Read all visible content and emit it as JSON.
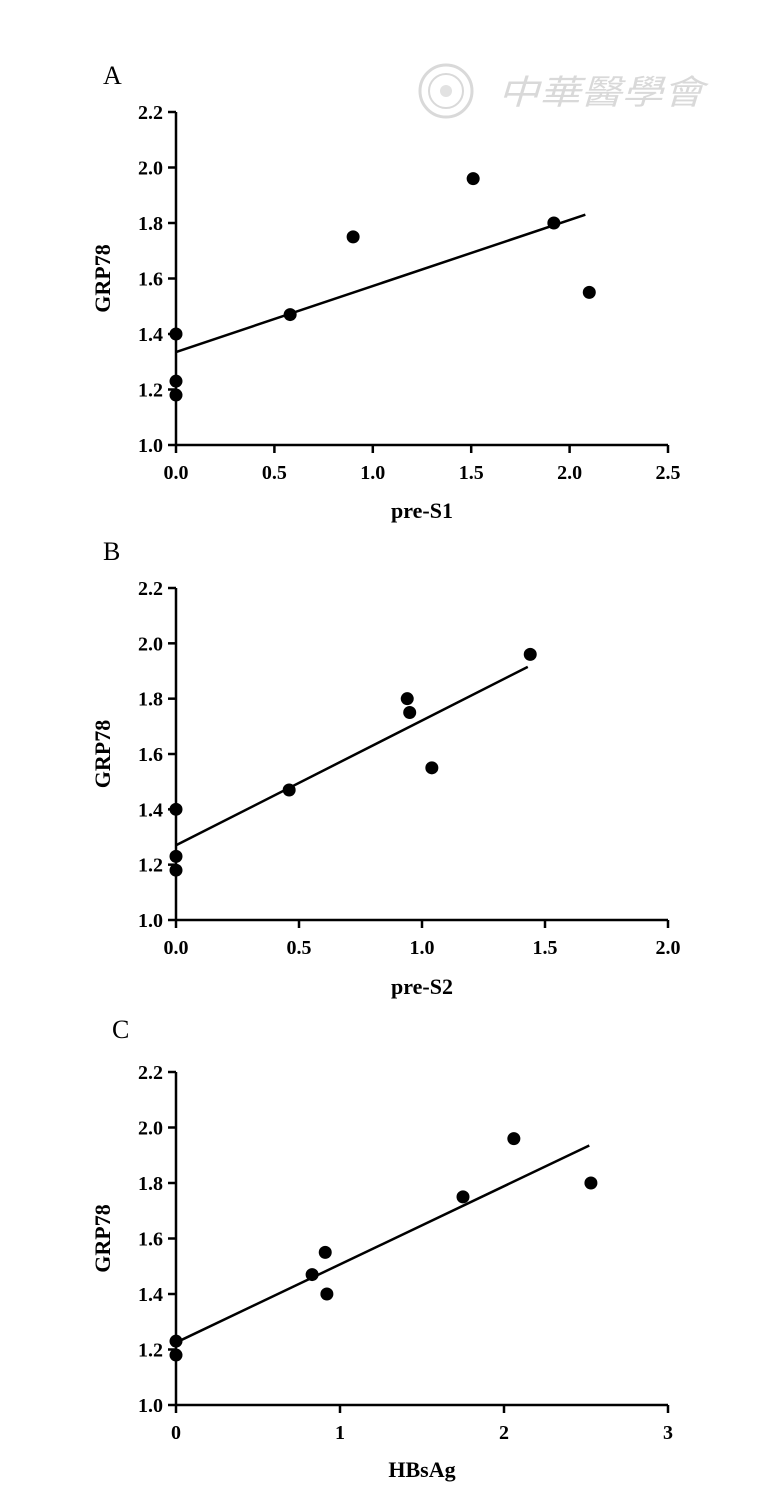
{
  "watermark": {
    "text": "中華醫學會",
    "color": "#d9d9d9"
  },
  "chart_data": [
    {
      "type": "scatter",
      "panel": "A",
      "xlabel": "pre-S1",
      "ylabel": "GRP78",
      "xlim": [
        0,
        2.5
      ],
      "ylim": [
        1.0,
        2.2
      ],
      "xticks": [
        "0.0",
        "0.5",
        "1.0",
        "1.5",
        "2.0",
        "2.5"
      ],
      "yticks": [
        "1.0",
        "1.2",
        "1.4",
        "1.6",
        "1.8",
        "2.0",
        "2.2"
      ],
      "points": [
        {
          "x": 0,
          "y": 1.4
        },
        {
          "x": 0,
          "y": 1.23
        },
        {
          "x": 0,
          "y": 1.18
        },
        {
          "x": 0.58,
          "y": 1.47
        },
        {
          "x": 0.9,
          "y": 1.75
        },
        {
          "x": 1.51,
          "y": 1.96
        },
        {
          "x": 1.92,
          "y": 1.8
        },
        {
          "x": 2.1,
          "y": 1.55
        }
      ],
      "fit": {
        "x1": 0,
        "y1": 1.335,
        "x2": 2.08,
        "y2": 1.83
      }
    },
    {
      "type": "scatter",
      "panel": "B",
      "xlabel": "pre-S2",
      "ylabel": "GRP78",
      "xlim": [
        0,
        2.0
      ],
      "ylim": [
        1.0,
        2.2
      ],
      "xticks": [
        "0.0",
        "0.5",
        "1.0",
        "1.5",
        "2.0"
      ],
      "yticks": [
        "1.0",
        "1.2",
        "1.4",
        "1.6",
        "1.8",
        "2.0",
        "2.2"
      ],
      "points": [
        {
          "x": 0,
          "y": 1.4
        },
        {
          "x": 0,
          "y": 1.23
        },
        {
          "x": 0,
          "y": 1.18
        },
        {
          "x": 0.46,
          "y": 1.47
        },
        {
          "x": 0.94,
          "y": 1.8
        },
        {
          "x": 0.95,
          "y": 1.75
        },
        {
          "x": 1.04,
          "y": 1.55
        },
        {
          "x": 1.44,
          "y": 1.96
        }
      ],
      "fit": {
        "x1": 0,
        "y1": 1.27,
        "x2": 1.43,
        "y2": 1.915
      }
    },
    {
      "type": "scatter",
      "panel": "C",
      "xlabel": "HBsAg",
      "ylabel": "GRP78",
      "xlim": [
        0,
        3
      ],
      "ylim": [
        1.0,
        2.2
      ],
      "xticks": [
        "0",
        "1",
        "2",
        "3"
      ],
      "yticks": [
        "1.0",
        "1.2",
        "1.4",
        "1.6",
        "1.8",
        "2.0",
        "2.2"
      ],
      "points": [
        {
          "x": 0,
          "y": 1.23
        },
        {
          "x": 0,
          "y": 1.18
        },
        {
          "x": 0.83,
          "y": 1.47
        },
        {
          "x": 0.91,
          "y": 1.55
        },
        {
          "x": 0.92,
          "y": 1.4
        },
        {
          "x": 1.75,
          "y": 1.75
        },
        {
          "x": 2.06,
          "y": 1.96
        },
        {
          "x": 2.53,
          "y": 1.8
        }
      ],
      "fit": {
        "x1": 0,
        "y1": 1.225,
        "x2": 2.52,
        "y2": 1.935
      }
    }
  ]
}
